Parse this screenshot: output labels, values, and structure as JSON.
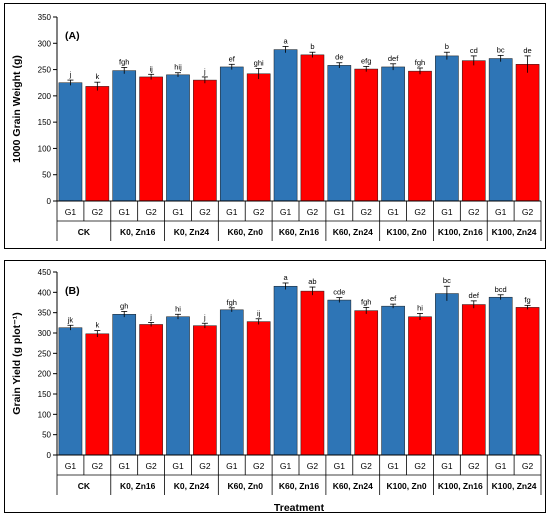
{
  "colors": {
    "G1": "#2E75B6",
    "G2": "#FF0000"
  },
  "chart_data": [
    {
      "type": "bar",
      "panel_label": "(A)",
      "ylabel": "1000 Grain Weight (g)",
      "xlabel": "",
      "ylim": [
        0,
        350
      ],
      "yticks": [
        0,
        50,
        100,
        150,
        200,
        250,
        300,
        350
      ],
      "subcategories": [
        "G1",
        "G2"
      ],
      "treatments": [
        "CK",
        "K0, Zn16",
        "K0, Zn24",
        "K60, Zn0",
        "K60, Zn16",
        "K60, Zn24",
        "K100, Zn0",
        "K100, Zn16",
        "K100, Zn24"
      ],
      "values": [
        225,
        218,
        248,
        236,
        240,
        230,
        255,
        242,
        288,
        278,
        258,
        251,
        255,
        247,
        276,
        267,
        271,
        260
      ],
      "errors": [
        5,
        8,
        6,
        5,
        4,
        6,
        5,
        10,
        6,
        5,
        5,
        5,
        6,
        6,
        7,
        9,
        6,
        16
      ],
      "significance": [
        "j",
        "k",
        "fgh",
        "ij",
        "hij",
        "j",
        "ef",
        "ghi",
        "a",
        "b",
        "de",
        "efg",
        "def",
        "fgh",
        "b",
        "cd",
        "bc",
        "de"
      ]
    },
    {
      "type": "bar",
      "panel_label": "(B)",
      "ylabel": "Grain Yield (g plot⁻¹)",
      "xlabel": "Treatment",
      "ylim": [
        0,
        450
      ],
      "yticks": [
        0,
        50,
        100,
        150,
        200,
        250,
        300,
        350,
        400,
        450
      ],
      "subcategories": [
        "G1",
        "G2"
      ],
      "treatments": [
        "CK",
        "K0, Zn16",
        "K0, Zn24",
        "K60, Zn0",
        "K60, Zn16",
        "K60, Zn24",
        "K100, Zn0",
        "K100, Zn16",
        "K100, Zn24"
      ],
      "values": [
        313,
        298,
        346,
        321,
        340,
        318,
        357,
        328,
        415,
        403,
        381,
        355,
        366,
        340,
        397,
        370,
        388,
        363
      ],
      "errors": [
        6,
        8,
        7,
        5,
        6,
        6,
        5,
        7,
        8,
        10,
        6,
        8,
        5,
        8,
        18,
        9,
        6,
        5
      ],
      "significance": [
        "jk",
        "k",
        "gh",
        "j",
        "hi",
        "j",
        "fgh",
        "ij",
        "a",
        "ab",
        "cde",
        "fgh",
        "ef",
        "hi",
        "bc",
        "def",
        "bcd",
        "fg"
      ]
    }
  ]
}
